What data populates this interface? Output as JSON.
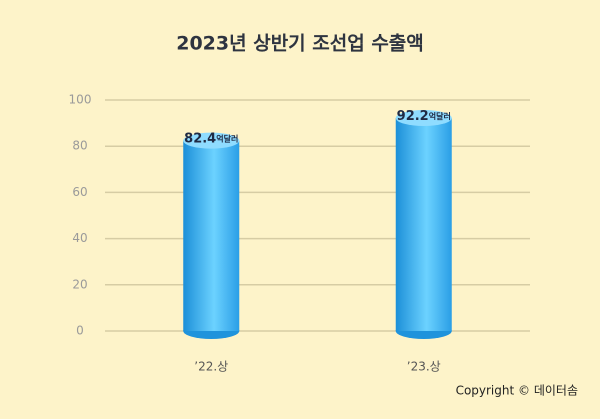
{
  "chart_data": {
    "type": "bar",
    "title": "2023년 상반기 조선업 수출액",
    "categories": [
      "’22.상",
      "’23.상"
    ],
    "values": [
      82.4,
      92.2
    ],
    "value_labels": [
      "82.4억달러",
      "92.2억달러"
    ],
    "color": "#3cb4f2",
    "ylim": [
      0,
      100
    ],
    "yticks": [
      0,
      20,
      40,
      60,
      80,
      100
    ],
    "grid": true,
    "copyright": "Copyright © 데이터솜"
  }
}
